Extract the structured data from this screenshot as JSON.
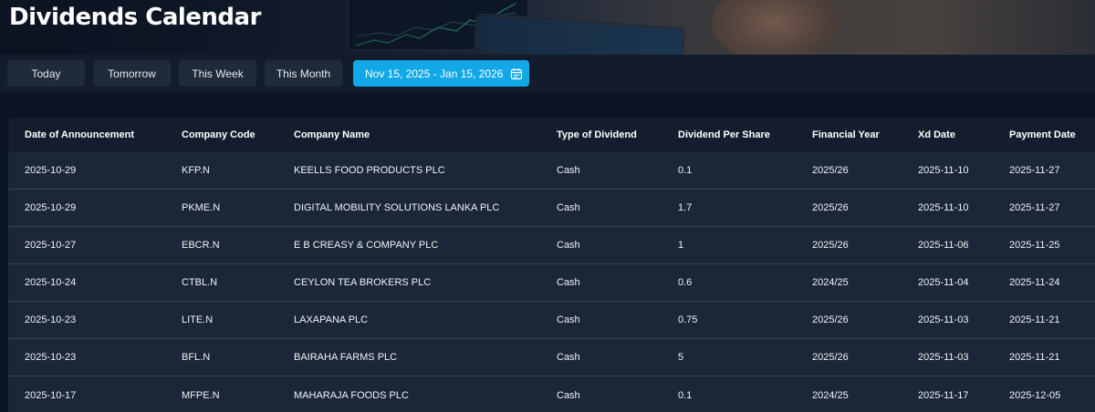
{
  "page": {
    "title": "Dividends Calendar"
  },
  "filters": {
    "today": "Today",
    "tomorrow": "Tomorrow",
    "this_week": "This Week",
    "this_month": "This Month",
    "date_range": "Nov 15, 2025 - Jan 15, 2026",
    "date_range_icon": "calendar-icon",
    "accent_color": "#12a7e6"
  },
  "table": {
    "columns": [
      "Date of Announcement",
      "Company Code",
      "Company Name",
      "Type of Dividend",
      "Dividend Per Share",
      "Financial Year",
      "Xd Date",
      "Payment Date"
    ],
    "rows": [
      [
        "2025-10-29",
        "KFP.N",
        "KEELLS FOOD PRODUCTS PLC",
        "Cash",
        "0.1",
        "2025/26",
        "2025-11-10",
        "2025-11-27"
      ],
      [
        "2025-10-29",
        "PKME.N",
        "DIGITAL MOBILITY SOLUTIONS LANKA PLC",
        "Cash",
        "1.7",
        "2025/26",
        "2025-11-10",
        "2025-11-27"
      ],
      [
        "2025-10-27",
        "EBCR.N",
        "E B CREASY & COMPANY PLC",
        "Cash",
        "1",
        "2025/26",
        "2025-11-06",
        "2025-11-25"
      ],
      [
        "2025-10-24",
        "CTBL.N",
        "CEYLON TEA BROKERS PLC",
        "Cash",
        "0.6",
        "2024/25",
        "2025-11-04",
        "2025-11-24"
      ],
      [
        "2025-10-23",
        "LITE.N",
        "LAXAPANA PLC",
        "Cash",
        "0.75",
        "2025/26",
        "2025-11-03",
        "2025-11-21"
      ],
      [
        "2025-10-23",
        "BFL.N",
        "BAIRAHA FARMS PLC",
        "Cash",
        "5",
        "2025/26",
        "2025-11-03",
        "2025-11-21"
      ],
      [
        "2025-10-17",
        "MFPE.N",
        "MAHARAJA FOODS PLC",
        "Cash",
        "0.1",
        "2024/25",
        "2025-11-17",
        "2025-12-05"
      ]
    ]
  }
}
